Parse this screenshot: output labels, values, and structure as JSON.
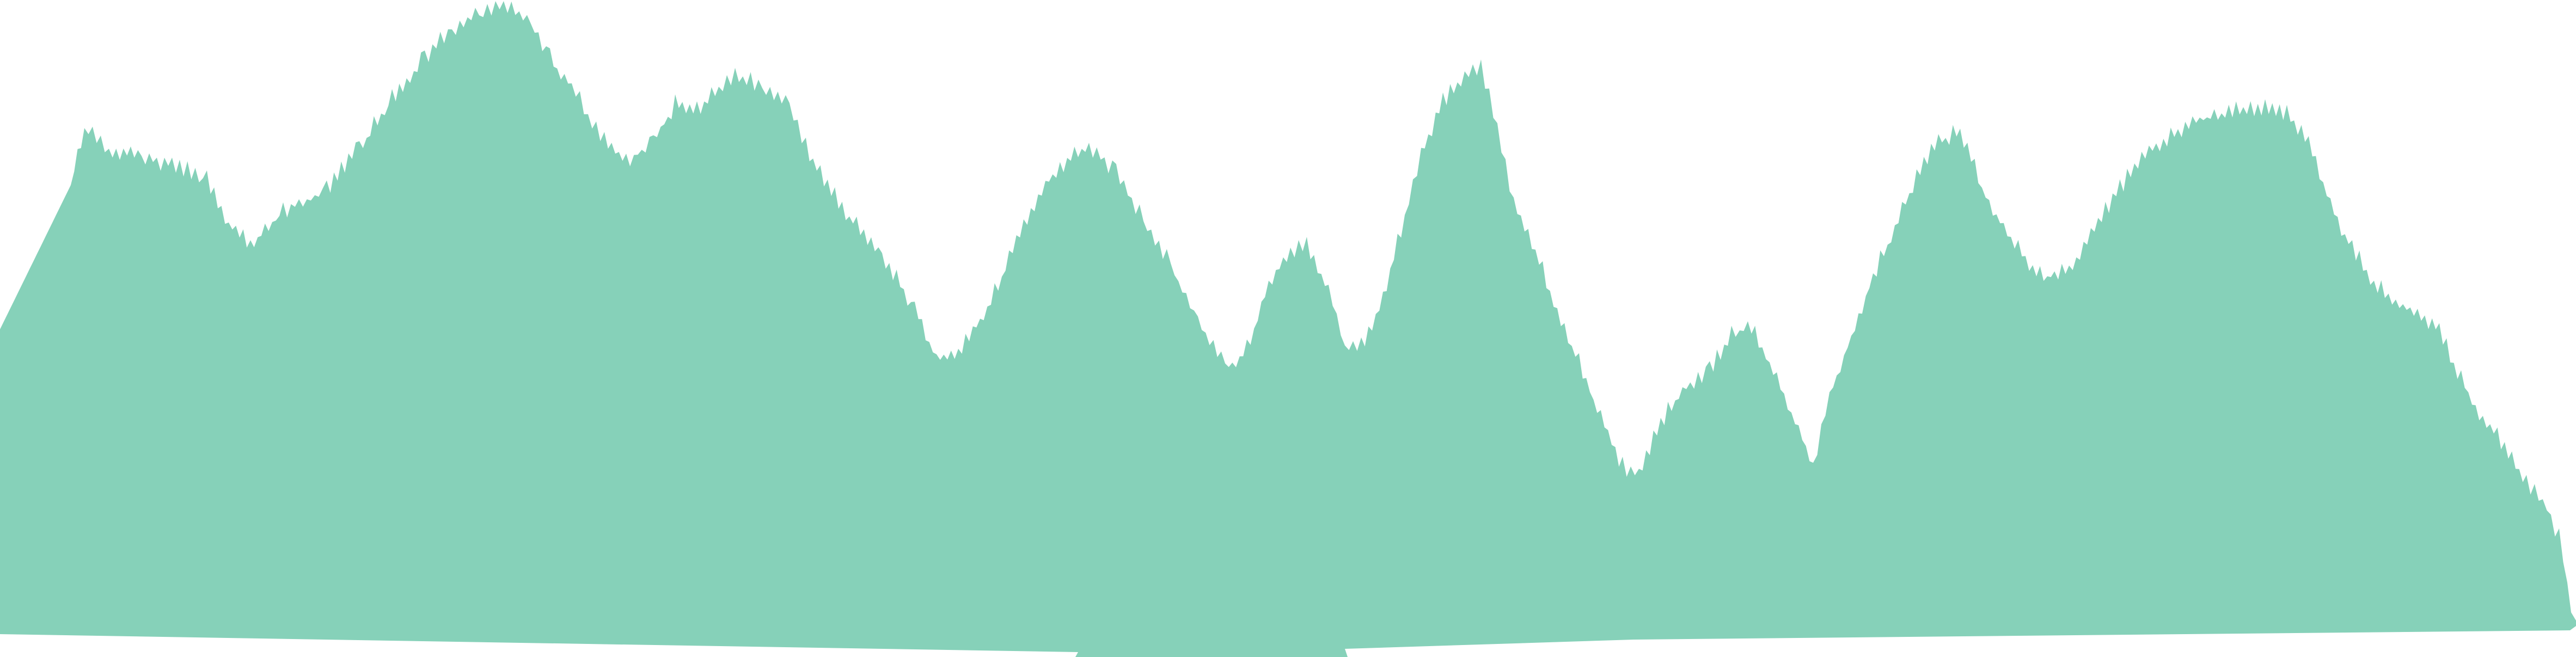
{
  "graphic": {
    "description_visible_text": "",
    "fill_color": "#86d1b9",
    "background_color": "#ffffff",
    "shape": "mountain-range-silhouette"
  }
}
